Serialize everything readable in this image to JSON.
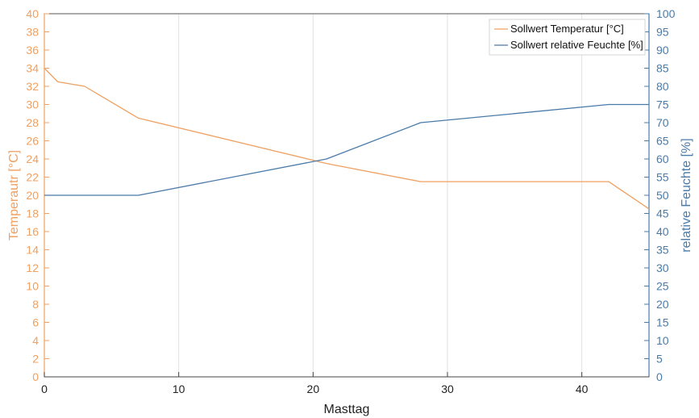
{
  "chart_data": {
    "type": "line",
    "xlabel": "Masttag",
    "ylabel_left": "Temperautr [°C]",
    "ylabel_right": "relative Feuchte [%]",
    "xlim": [
      0,
      45
    ],
    "ylim_left": [
      0,
      40
    ],
    "ylim_right": [
      0,
      100
    ],
    "x_ticks": [
      0,
      10,
      20,
      30,
      40
    ],
    "y_ticks_left": [
      0,
      2,
      4,
      6,
      8,
      10,
      12,
      14,
      16,
      18,
      20,
      22,
      24,
      26,
      28,
      30,
      32,
      34,
      36,
      38,
      40
    ],
    "y_ticks_right": [
      0,
      5,
      10,
      15,
      20,
      25,
      30,
      35,
      40,
      45,
      50,
      55,
      60,
      65,
      70,
      75,
      80,
      85,
      90,
      95,
      100
    ],
    "grid": true,
    "legend_position": "top-right",
    "colors": {
      "temperature": "#f0a060",
      "humidity": "#4a7ba8"
    },
    "series": [
      {
        "name": "Sollwert Temperatur [°C]",
        "axis": "left",
        "x": [
          0,
          1,
          3,
          7,
          21,
          28,
          42,
          45
        ],
        "y": [
          34,
          32.5,
          32,
          28.5,
          23.5,
          21.5,
          21.5,
          18.5
        ]
      },
      {
        "name": "Sollwert relative Feuchte [%]",
        "axis": "right",
        "x": [
          0,
          7,
          21,
          28,
          42,
          45
        ],
        "y": [
          50,
          50,
          60,
          70,
          75,
          75
        ]
      }
    ]
  }
}
